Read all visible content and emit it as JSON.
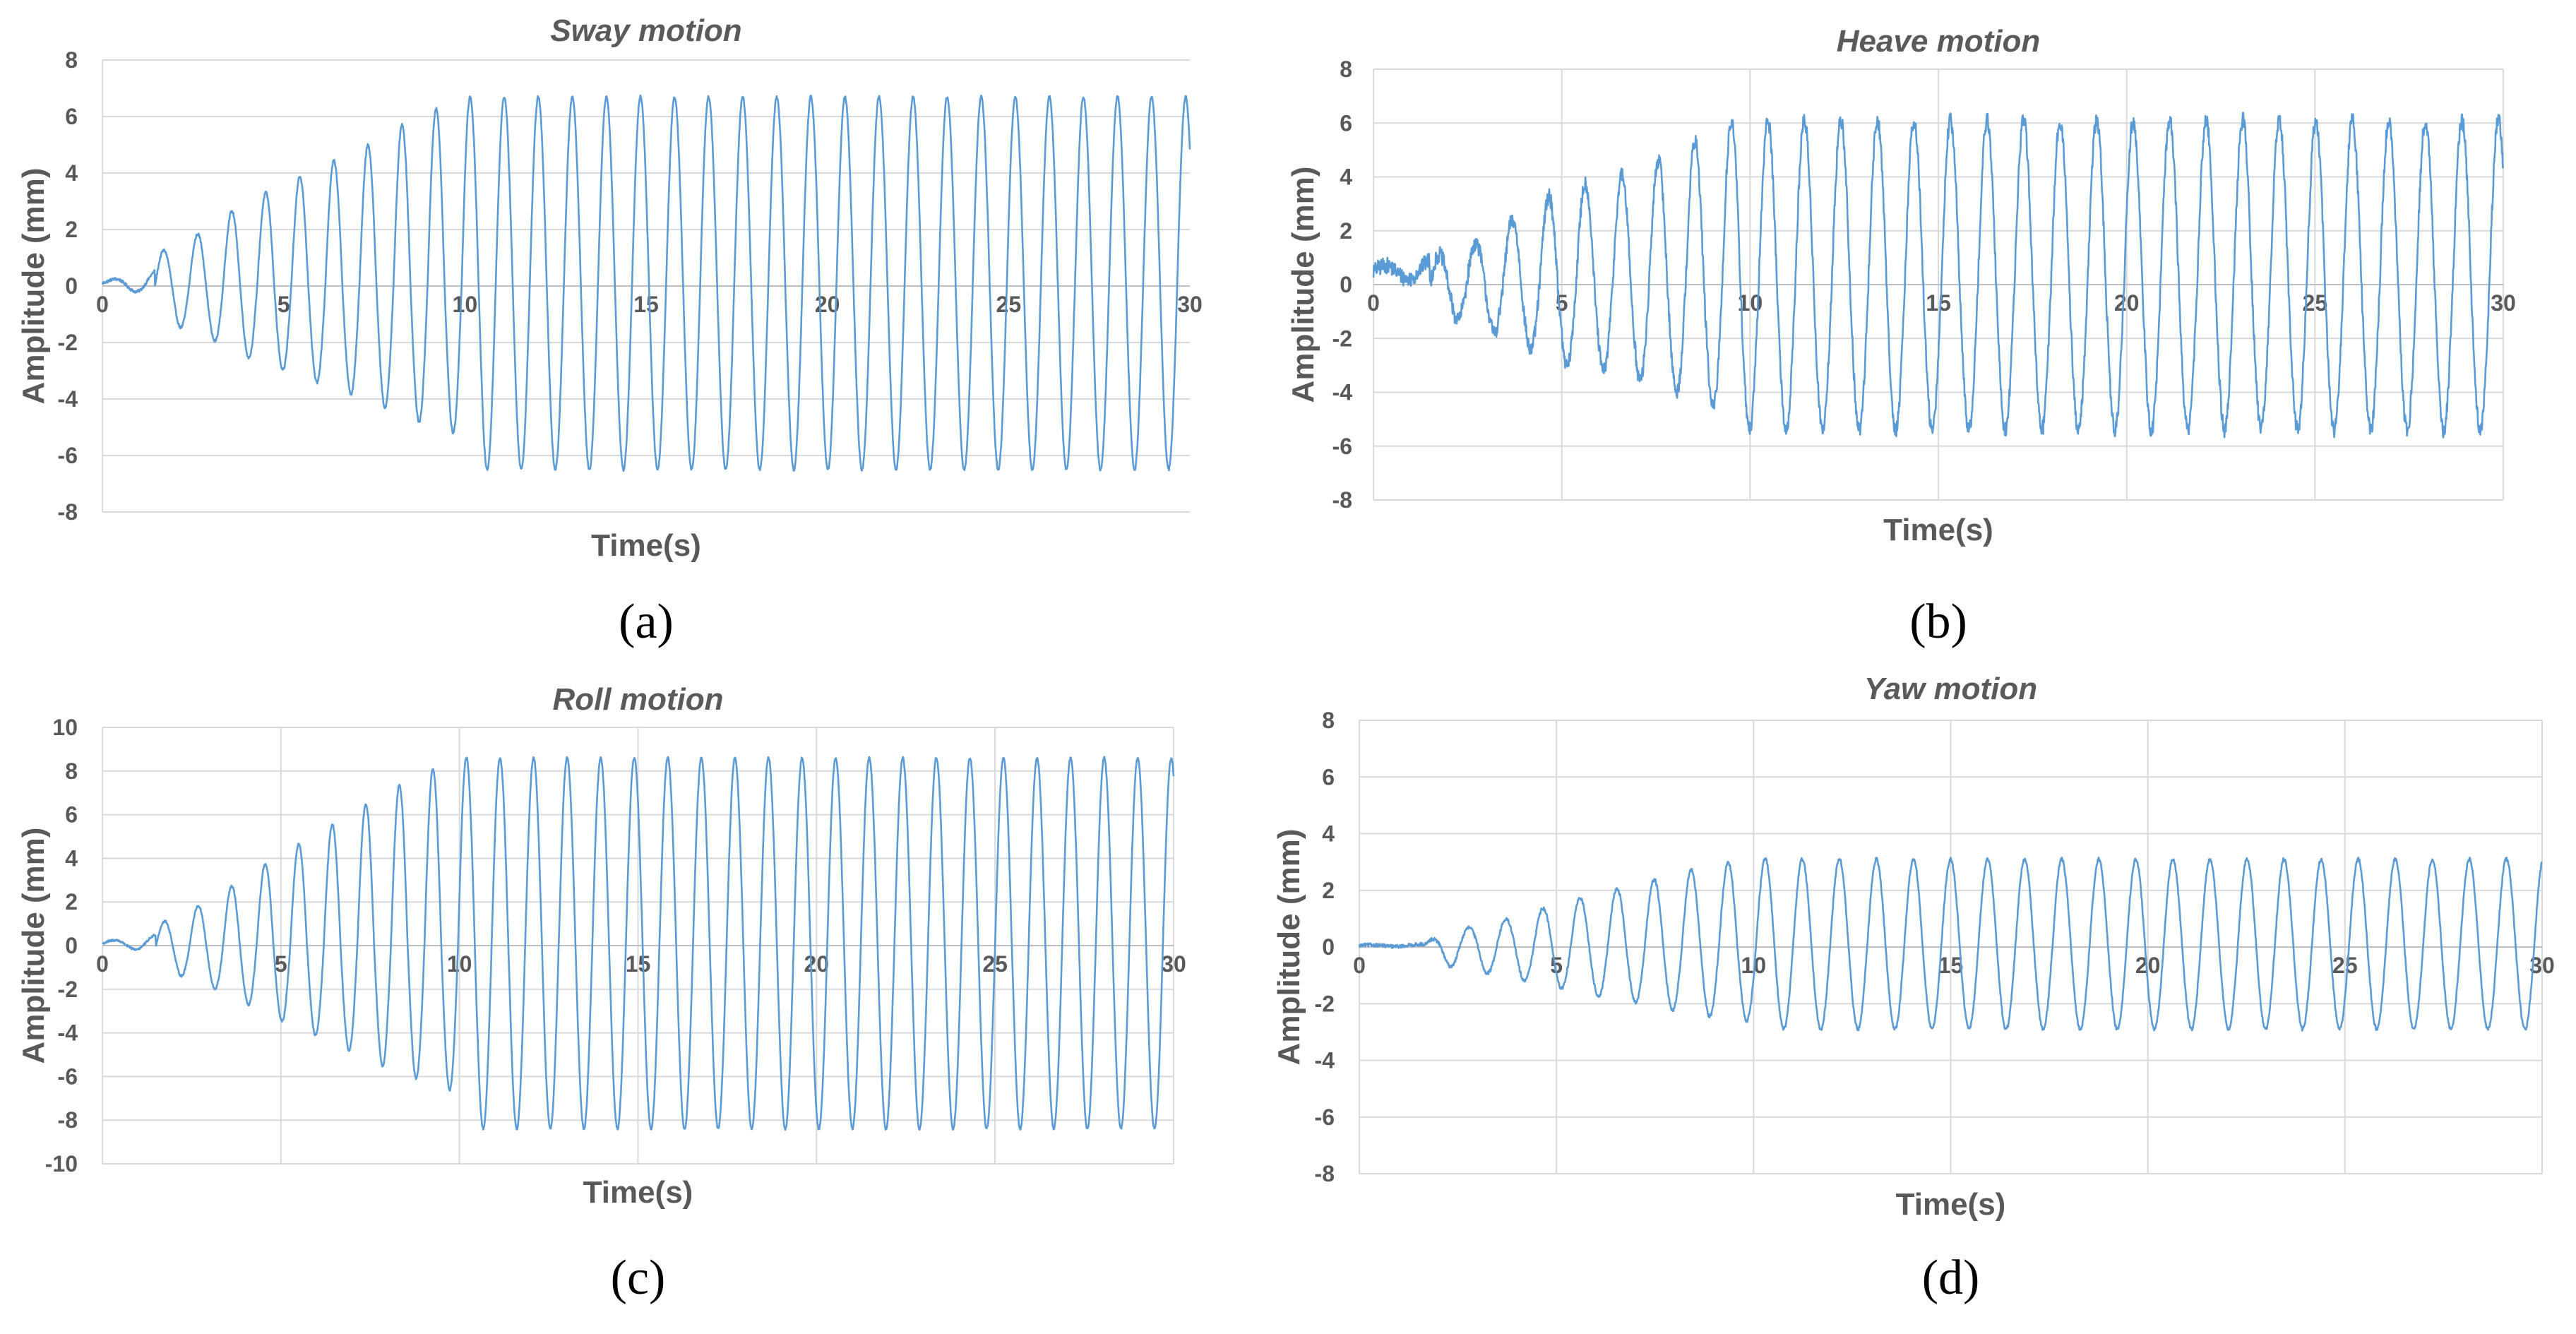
{
  "chart_data": [
    {
      "type": "line",
      "panel": "a",
      "panel_label": "(a)",
      "title": "Sway motion",
      "xlabel": "Time(s)",
      "ylabel": "Amplitude (mm)",
      "xlim": [
        0,
        30
      ],
      "ylim": [
        -8,
        8
      ],
      "xticks": [
        0,
        5,
        10,
        15,
        20,
        25,
        30
      ],
      "yticks": [
        -8,
        -6,
        -4,
        -2,
        0,
        2,
        4,
        6,
        8
      ],
      "xtick_labels": [
        "0",
        "5",
        "10",
        "15",
        "20",
        "25",
        "30"
      ],
      "ytick_labels": [
        "-8",
        "-6",
        "-4",
        "-2",
        "0",
        "2",
        "4",
        "6",
        "8"
      ],
      "grid": "horizontal",
      "series": [
        {
          "name": "Sway",
          "color": "#5b9bd5",
          "period_s": 0.94,
          "phase_start_s": 1.45,
          "ramp_end_s": 10.0,
          "steady_peak": 6.7,
          "steady_trough": -6.5,
          "initial_offset": 0.1,
          "noise_amplitude": 0.05,
          "envelope": [
            [
              0,
              0.15
            ],
            [
              1.9,
              1.4
            ],
            [
              2.9,
              2.0
            ],
            [
              3.5,
              2.6
            ],
            [
              4.5,
              3.3
            ],
            [
              5.5,
              3.9
            ],
            [
              6.5,
              4.5
            ],
            [
              7.5,
              5.1
            ],
            [
              8.5,
              5.9
            ],
            [
              10.0,
              6.7
            ]
          ]
        }
      ]
    },
    {
      "type": "line",
      "panel": "b",
      "panel_label": "(b)",
      "title": "Heave motion",
      "xlabel": "Time(s)",
      "ylabel": "Amplitude (mm)",
      "xlim": [
        0,
        30
      ],
      "ylim": [
        -8,
        8
      ],
      "xticks": [
        0,
        5,
        10,
        15,
        20,
        25,
        30
      ],
      "yticks": [
        -8,
        -6,
        -4,
        -2,
        0,
        2,
        4,
        6,
        8
      ],
      "xtick_labels": [
        "0",
        "5",
        "10",
        "15",
        "20",
        "25",
        "30"
      ],
      "ytick_labels": [
        "-8",
        "-6",
        "-4",
        "-2",
        "0",
        "2",
        "4",
        "6",
        "8"
      ],
      "grid": "both",
      "series": [
        {
          "name": "Heave",
          "color": "#5b9bd5",
          "period_s": 0.97,
          "phase_start_s": 1.5,
          "ramp_end_s": 9.5,
          "steady_peak": 6.1,
          "steady_trough": -5.4,
          "initial_offset": 0.5,
          "noise_amplitude": 0.3,
          "envelope": [
            [
              0,
              0.4
            ],
            [
              1.5,
              1.0
            ],
            [
              2.8,
              1.6
            ],
            [
              3.8,
              2.5
            ],
            [
              5.0,
              3.6
            ],
            [
              6.5,
              4.0
            ],
            [
              8.0,
              4.9
            ],
            [
              9.5,
              6.1
            ]
          ]
        }
      ]
    },
    {
      "type": "line",
      "panel": "c",
      "panel_label": "(c)",
      "title": "Roll motion",
      "xlabel": "Time(s)",
      "ylabel": "Amplitude (mm)",
      "xlim": [
        0,
        30
      ],
      "ylim": [
        -10,
        10
      ],
      "xticks": [
        0,
        5,
        10,
        15,
        20,
        25,
        30
      ],
      "yticks": [
        -10,
        -8,
        -6,
        -4,
        -2,
        0,
        2,
        4,
        6,
        8,
        10
      ],
      "xtick_labels": [
        "0",
        "5",
        "10",
        "15",
        "20",
        "25",
        "30"
      ],
      "ytick_labels": [
        "-10",
        "-8",
        "-6",
        "-4",
        "-2",
        "0",
        "2",
        "4",
        "6",
        "8",
        "10"
      ],
      "grid": "both",
      "series": [
        {
          "name": "Roll",
          "color": "#5b9bd5",
          "period_s": 0.94,
          "phase_start_s": 1.5,
          "ramp_end_s": 10.0,
          "steady_peak": 8.6,
          "steady_trough": -8.4,
          "initial_offset": 0.1,
          "noise_amplitude": 0.05,
          "envelope": [
            [
              0,
              0.2
            ],
            [
              1.9,
              1.2
            ],
            [
              2.9,
              2.0
            ],
            [
              3.9,
              3.0
            ],
            [
              5.0,
              4.2
            ],
            [
              6.0,
              5.1
            ],
            [
              7.0,
              6.1
            ],
            [
              8.0,
              7.1
            ],
            [
              9.0,
              7.9
            ],
            [
              10.0,
              8.6
            ]
          ]
        }
      ]
    },
    {
      "type": "line",
      "panel": "d",
      "panel_label": "(d)",
      "title": "Yaw motion",
      "xlabel": "Time(s)",
      "ylabel": "Amplitude (mm)",
      "xlim": [
        0,
        30
      ],
      "ylim": [
        -8,
        8
      ],
      "xticks": [
        0,
        5,
        10,
        15,
        20,
        25,
        30
      ],
      "yticks": [
        -8,
        -6,
        -4,
        -2,
        0,
        2,
        4,
        6,
        8
      ],
      "xtick_labels": [
        "0",
        "5",
        "10",
        "15",
        "20",
        "25",
        "30"
      ],
      "ytick_labels": [
        "-8",
        "-6",
        "-4",
        "-2",
        "0",
        "2",
        "4",
        "6",
        "8"
      ],
      "grid": "both",
      "series": [
        {
          "name": "Yaw",
          "color": "#5b9bd5",
          "period_s": 0.94,
          "phase_start_s": 1.6,
          "ramp_end_s": 10.0,
          "steady_peak": 3.1,
          "steady_trough": -2.9,
          "initial_offset": 0.05,
          "noise_amplitude": 0.06,
          "envelope": [
            [
              0,
              0.05
            ],
            [
              1.5,
              0.1
            ],
            [
              2.5,
              0.6
            ],
            [
              3.8,
              1.0
            ],
            [
              5.0,
              1.5
            ],
            [
              6.0,
              1.9
            ],
            [
              7.0,
              2.2
            ],
            [
              8.0,
              2.6
            ],
            [
              9.0,
              2.9
            ],
            [
              10.0,
              3.1
            ]
          ]
        }
      ]
    }
  ]
}
